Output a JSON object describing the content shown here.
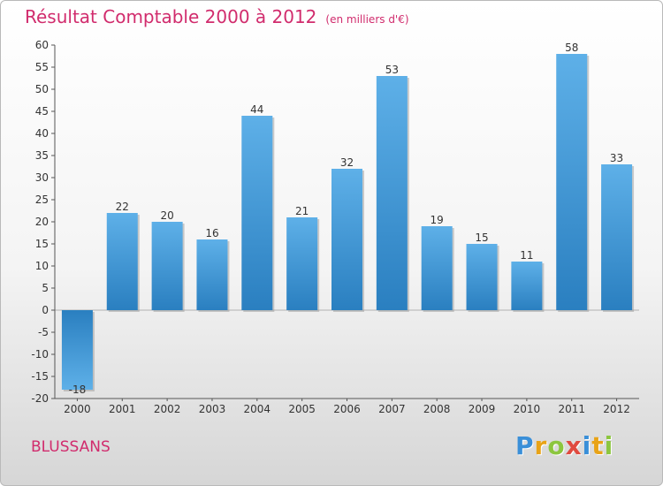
{
  "header": {
    "title": "Résultat Comptable 2000 à 2012",
    "subtitle": "(en milliers d'€)"
  },
  "footer": {
    "commune": "BLUSSANS"
  },
  "logo": {
    "letters": [
      "P",
      "r",
      "o",
      "x",
      "i",
      "t",
      "i"
    ]
  },
  "colors": {
    "title": "#d12c6d",
    "bar_light": "#5eb0e8",
    "bar_dark": "#2a7fc0",
    "axis": "#555555"
  },
  "chart_data": {
    "type": "bar",
    "title": "Résultat Comptable 2000 à 2012",
    "xlabel": "",
    "ylabel": "",
    "categories": [
      "2000",
      "2001",
      "2002",
      "2003",
      "2004",
      "2005",
      "2006",
      "2007",
      "2008",
      "2009",
      "2010",
      "2011",
      "2012"
    ],
    "values": [
      -18,
      22,
      20,
      16,
      44,
      21,
      32,
      53,
      19,
      15,
      11,
      58,
      33
    ],
    "labels": [
      "-18",
      "22",
      "20",
      "16",
      "44",
      "21",
      "32",
      "53",
      "19",
      "15",
      "11",
      "58",
      "33"
    ],
    "ylim": [
      -20,
      60
    ],
    "yticks": [
      -20,
      -15,
      -10,
      -5,
      0,
      5,
      10,
      15,
      20,
      25,
      30,
      35,
      40,
      45,
      50,
      55,
      60
    ],
    "grid": false
  }
}
